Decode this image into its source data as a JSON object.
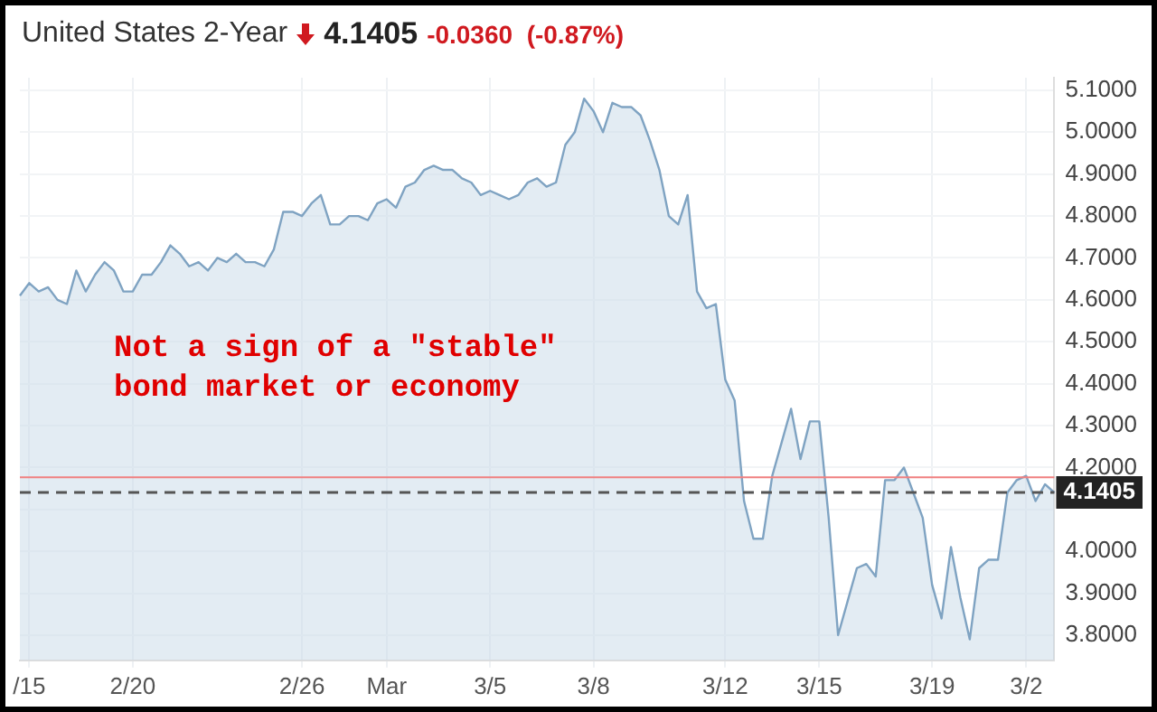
{
  "chart_data": {
    "type": "area",
    "title": "United States 2-Year",
    "subtitle": "4.1405 -0.0360 (-0.87%)",
    "annotations": [
      "Not a sign of a \"stable\"\nbond market or economy"
    ],
    "categories": [
      null,
      "/15",
      null,
      null,
      null,
      null,
      null,
      null,
      null,
      null,
      null,
      null,
      "2/20",
      null,
      null,
      null,
      null,
      null,
      null,
      null,
      null,
      null,
      null,
      null,
      null,
      null,
      null,
      null,
      null,
      null,
      "2/26",
      null,
      null,
      null,
      null,
      null,
      null,
      null,
      null,
      "Mar",
      null,
      null,
      null,
      null,
      null,
      null,
      null,
      null,
      null,
      null,
      "3/5",
      null,
      null,
      null,
      null,
      null,
      null,
      null,
      null,
      null,
      null,
      "3/8",
      null,
      null,
      null,
      null,
      null,
      null,
      null,
      null,
      null,
      null,
      null,
      null,
      null,
      "3/12",
      null,
      null,
      null,
      null,
      null,
      null,
      null,
      null,
      null,
      "3/15",
      null,
      null,
      null,
      null,
      null,
      null,
      null,
      null,
      null,
      null,
      null,
      "3/19",
      null,
      null,
      null,
      null,
      null,
      null,
      null,
      null,
      null,
      "3/2",
      null,
      null,
      null
    ],
    "series": [
      {
        "color": "#7fa3c2",
        "values": [
          4.61,
          4.64,
          4.62,
          4.63,
          4.6,
          4.59,
          4.67,
          4.62,
          4.66,
          4.69,
          4.67,
          4.62,
          4.62,
          4.66,
          4.66,
          4.69,
          4.73,
          4.71,
          4.68,
          4.69,
          4.67,
          4.7,
          4.69,
          4.71,
          4.69,
          4.69,
          4.68,
          4.72,
          4.81,
          4.81,
          4.8,
          4.83,
          4.85,
          4.78,
          4.78,
          4.8,
          4.8,
          4.79,
          4.83,
          4.84,
          4.82,
          4.87,
          4.88,
          4.91,
          4.92,
          4.91,
          4.91,
          4.89,
          4.88,
          4.85,
          4.86,
          4.85,
          4.84,
          4.85,
          4.88,
          4.89,
          4.87,
          4.88,
          4.97,
          5.0,
          5.08,
          5.05,
          5.0,
          5.07,
          5.06,
          5.06,
          5.04,
          4.98,
          4.91,
          4.8,
          4.78,
          4.85,
          4.62,
          4.58,
          4.59,
          4.41,
          4.36,
          4.12,
          4.03,
          4.03,
          4.18,
          4.26,
          4.34,
          4.22,
          4.31,
          4.31,
          4.08,
          3.8,
          3.88,
          3.96,
          3.97,
          3.94,
          4.17,
          4.17,
          4.2,
          4.14,
          4.08,
          3.92,
          3.84,
          4.01,
          3.89,
          3.79,
          3.96,
          3.98,
          3.98,
          4.14,
          4.17,
          4.18,
          4.12,
          4.16,
          4.14
        ]
      }
    ],
    "ylim": [
      3.74,
      5.13
    ],
    "yticks": [
      {
        "value": 3.8,
        "label": "3.8000"
      },
      {
        "value": 3.9,
        "label": "3.9000"
      },
      {
        "value": 4.0,
        "label": "4.0000"
      },
      {
        "value": 4.1,
        "label": null
      },
      {
        "value": 4.2,
        "label": "4.2000"
      },
      {
        "value": 4.3,
        "label": "4.3000"
      },
      {
        "value": 4.4,
        "label": "4.4000"
      },
      {
        "value": 4.5,
        "label": "4.5000"
      },
      {
        "value": 4.6,
        "label": "4.6000"
      },
      {
        "value": 4.7,
        "label": "4.7000"
      },
      {
        "value": 4.8,
        "label": "4.8000"
      },
      {
        "value": 4.9,
        "label": "4.9000"
      },
      {
        "value": 5.0,
        "label": "5.0000"
      },
      {
        "value": 5.1,
        "label": "5.1000"
      }
    ],
    "ref_lines": [
      {
        "axis": "y",
        "value": 4.1765,
        "color": "#f08080",
        "line_style": "solid"
      },
      {
        "axis": "y",
        "value": 4.1405,
        "label": "4.1405",
        "color": "#555555",
        "line_style": "dashed"
      }
    ],
    "grid": true,
    "legend": false,
    "marker": "none",
    "line_style": "solid"
  }
}
